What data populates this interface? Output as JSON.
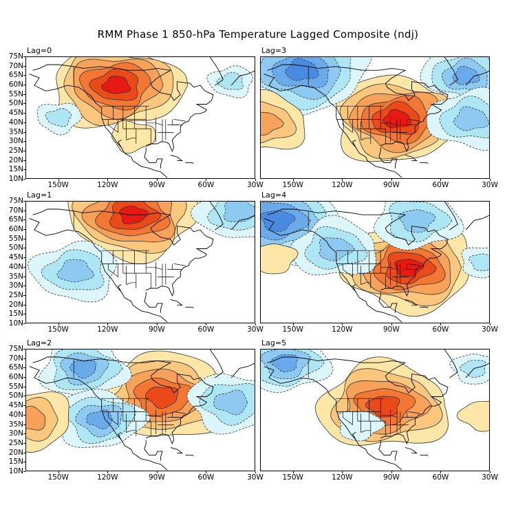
{
  "chart_data": {
    "type": "heatmap",
    "title": "RMM Phase 1 850-hPa Temperature Lagged Composite (ndj)",
    "xlabel": "",
    "ylabel": "",
    "x_ticks": [
      "150W",
      "120W",
      "90W",
      "60W",
      "30W"
    ],
    "y_ticks": [
      "75N",
      "70N",
      "65N",
      "60N",
      "55N",
      "50N",
      "45N",
      "40N",
      "35N",
      "30N",
      "25N",
      "20N",
      "15N",
      "10N"
    ],
    "lon_range": [
      -170,
      -30
    ],
    "lat_range": [
      10,
      75
    ],
    "grid": false,
    "legend": "none",
    "contour_style": "solid lines for positive anomalies (warm shading), dashed lines for negative anomalies (cool shading)",
    "colors": {
      "warm_1": "#fde6a8",
      "warm_2": "#fbc77f",
      "warm_3": "#f8a15b",
      "warm_4": "#f27734",
      "warm_5": "#ea4a1a",
      "warm_6": "#e61a12",
      "cool_1": "#dcf6fb",
      "cool_2": "#aee6f5",
      "cool_3": "#8dc9f0",
      "cool_4": "#6aa9ea",
      "cool_5": "#4a8ae0"
    },
    "panels": [
      {
        "label": "Lag=0",
        "position": "top-left",
        "features": [
          {
            "sign": "warm",
            "center": [
              -115,
              60
            ],
            "max_level": 6,
            "desc": "strong warm anomaly over NW Canada extending to central US"
          },
          {
            "sign": "warm",
            "center": [
              -105,
              33
            ],
            "max_level": 1,
            "desc": "weak warm over southwest US/Mexico"
          },
          {
            "sign": "cool",
            "center": [
              -150,
              43
            ],
            "max_level": 2,
            "desc": "weak cool over NE Pacific"
          },
          {
            "sign": "cool",
            "center": [
              -45,
              62
            ],
            "max_level": 2,
            "desc": "weak cool near Greenland / N Atlantic"
          }
        ]
      },
      {
        "label": "Lag=1",
        "position": "middle-left",
        "features": [
          {
            "sign": "warm",
            "center": [
              -105,
              68
            ],
            "max_level": 6,
            "desc": "strong warm anomaly over northern Canada"
          },
          {
            "sign": "cool",
            "center": [
              -140,
              38
            ],
            "max_level": 3,
            "desc": "cool over NE Pacific"
          },
          {
            "sign": "cool",
            "center": [
              -40,
              70
            ],
            "max_level": 3,
            "desc": "cool near Greenland"
          }
        ]
      },
      {
        "label": "Lag=2",
        "position": "bottom-left",
        "features": [
          {
            "sign": "warm",
            "center": [
              -87,
              50
            ],
            "max_level": 5,
            "desc": "warm anomaly over Hudson Bay / Great Lakes extending to SE US"
          },
          {
            "sign": "cool",
            "center": [
              -135,
              65
            ],
            "max_level": 4,
            "desc": "cool over Alaska"
          },
          {
            "sign": "cool",
            "center": [
              -125,
              38
            ],
            "max_level": 4,
            "desc": "cool over western US and Pacific"
          },
          {
            "sign": "cool",
            "center": [
              -45,
              47
            ],
            "max_level": 3,
            "desc": "cool over N Atlantic"
          },
          {
            "sign": "warm",
            "center": [
              -168,
              38
            ],
            "max_level": 3,
            "desc": "warm at western edge Pacific"
          }
        ]
      },
      {
        "label": "Lag=3",
        "position": "top-right",
        "features": [
          {
            "sign": "warm",
            "center": [
              -87,
              42
            ],
            "max_level": 6,
            "desc": "strong warm anomaly centered on Great Lakes"
          },
          {
            "sign": "cool",
            "center": [
              -145,
              68
            ],
            "max_level": 5,
            "desc": "strong cool over Alaska / Yukon"
          },
          {
            "sign": "cool",
            "center": [
              -45,
              65
            ],
            "max_level": 4,
            "desc": "cool near Greenland"
          },
          {
            "sign": "cool",
            "center": [
              -42,
              42
            ],
            "max_level": 3,
            "desc": "cool over central N Atlantic"
          },
          {
            "sign": "warm",
            "center": [
              -168,
              40
            ],
            "max_level": 3,
            "desc": "warm at western edge Pacific"
          }
        ]
      },
      {
        "label": "Lag=4",
        "position": "middle-right",
        "features": [
          {
            "sign": "warm",
            "center": [
              -80,
              40
            ],
            "max_level": 6,
            "desc": "strong warm anomaly over eastern US"
          },
          {
            "sign": "cool",
            "center": [
              -160,
              65
            ],
            "max_level": 5,
            "desc": "cool over Bering / Alaska"
          },
          {
            "sign": "cool",
            "center": [
              -125,
              50
            ],
            "max_level": 3,
            "desc": "cool over Pacific Northwest"
          },
          {
            "sign": "cool",
            "center": [
              -75,
              65
            ],
            "max_level": 3,
            "desc": "cool over northern Canada"
          },
          {
            "sign": "cool",
            "center": [
              -35,
              43
            ],
            "max_level": 2,
            "desc": "weak cool over N Atlantic"
          },
          {
            "sign": "warm",
            "center": [
              -162,
              45
            ],
            "max_level": 1,
            "desc": "weak warm over Pacific"
          }
        ]
      },
      {
        "label": "Lag=5",
        "position": "bottom-right",
        "features": [
          {
            "sign": "warm",
            "center": [
              -95,
              45
            ],
            "max_level": 5,
            "desc": "broad warm anomaly from western Canada to eastern US"
          },
          {
            "sign": "cool",
            "center": [
              -155,
              68
            ],
            "max_level": 4,
            "desc": "cool over Alaska"
          },
          {
            "sign": "cool",
            "center": [
              -110,
              35
            ],
            "max_level": 1,
            "desc": "weak cool over SW US"
          },
          {
            "sign": "cool",
            "center": [
              -40,
              65
            ],
            "max_level": 2,
            "desc": "weak cool near Greenland"
          },
          {
            "sign": "warm",
            "center": [
              -35,
              40
            ],
            "max_level": 1,
            "desc": "weak warm over N Atlantic"
          }
        ]
      }
    ]
  }
}
